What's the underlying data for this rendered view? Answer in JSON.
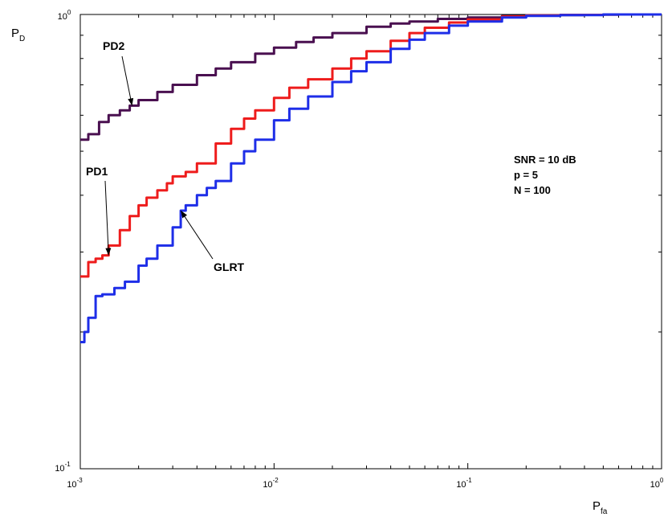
{
  "chart_data": {
    "type": "line",
    "xscale": "log",
    "yscale": "log",
    "xlim": [
      0.001,
      1
    ],
    "ylim": [
      0.1,
      1
    ],
    "xlabel": {
      "main": "P",
      "sub": "fa"
    },
    "ylabel": {
      "main": "P",
      "sub": "D"
    },
    "x_ticks": [
      {
        "base": "10",
        "exp": "-3"
      },
      {
        "base": "10",
        "exp": "-2"
      },
      {
        "base": "10",
        "exp": "-1"
      },
      {
        "base": "10",
        "exp": "0"
      }
    ],
    "y_ticks": [
      {
        "base": "10",
        "exp": "-1"
      },
      {
        "base": "10",
        "exp": "0"
      }
    ],
    "grid": false,
    "series": [
      {
        "name": "PD2",
        "color": "#4a1050",
        "x": [
          0.001,
          0.0011,
          0.00125,
          0.0014,
          0.0016,
          0.0018,
          0.002,
          0.0025,
          0.003,
          0.004,
          0.005,
          0.006,
          0.008,
          0.01,
          0.013,
          0.016,
          0.02,
          0.03,
          0.04,
          0.05,
          0.07,
          0.1,
          0.15,
          0.2,
          0.3,
          0.4,
          0.5,
          0.6,
          0.8,
          1.0
        ],
        "y": [
          0.53,
          0.545,
          0.58,
          0.6,
          0.615,
          0.63,
          0.648,
          0.675,
          0.7,
          0.735,
          0.76,
          0.785,
          0.82,
          0.845,
          0.87,
          0.89,
          0.91,
          0.94,
          0.955,
          0.965,
          0.978,
          0.985,
          0.992,
          0.995,
          0.997,
          0.998,
          0.999,
          1.0,
          1.0,
          1.0
        ]
      },
      {
        "name": "PD1",
        "color": "#ee1c1c",
        "x": [
          0.001,
          0.0011,
          0.0012,
          0.0013,
          0.0014,
          0.0016,
          0.0018,
          0.002,
          0.0022,
          0.0025,
          0.0028,
          0.003,
          0.0035,
          0.004,
          0.005,
          0.006,
          0.007,
          0.008,
          0.01,
          0.012,
          0.015,
          0.02,
          0.025,
          0.03,
          0.04,
          0.05,
          0.06,
          0.08,
          0.1,
          0.15,
          0.2,
          0.3,
          0.5,
          1.0
        ],
        "y": [
          0.265,
          0.285,
          0.29,
          0.295,
          0.31,
          0.335,
          0.36,
          0.38,
          0.395,
          0.41,
          0.425,
          0.44,
          0.45,
          0.47,
          0.52,
          0.56,
          0.59,
          0.615,
          0.655,
          0.69,
          0.72,
          0.76,
          0.8,
          0.83,
          0.875,
          0.91,
          0.935,
          0.96,
          0.975,
          0.99,
          0.995,
          0.998,
          1.0,
          1.0
        ]
      },
      {
        "name": "GLRT",
        "color": "#1e2ee8",
        "x": [
          0.001,
          0.00105,
          0.0011,
          0.0012,
          0.0013,
          0.0015,
          0.0017,
          0.002,
          0.0022,
          0.0025,
          0.003,
          0.0033,
          0.0035,
          0.004,
          0.0045,
          0.005,
          0.006,
          0.007,
          0.008,
          0.01,
          0.012,
          0.015,
          0.02,
          0.025,
          0.03,
          0.04,
          0.05,
          0.06,
          0.08,
          0.1,
          0.15,
          0.2,
          0.3,
          0.5,
          1.0
        ],
        "y": [
          0.19,
          0.2,
          0.215,
          0.24,
          0.242,
          0.25,
          0.258,
          0.28,
          0.29,
          0.31,
          0.34,
          0.37,
          0.38,
          0.4,
          0.415,
          0.43,
          0.47,
          0.5,
          0.53,
          0.585,
          0.62,
          0.66,
          0.71,
          0.75,
          0.785,
          0.84,
          0.88,
          0.91,
          0.945,
          0.965,
          0.985,
          0.993,
          0.997,
          1.0,
          1.0
        ]
      }
    ],
    "annotations": [
      {
        "text": "PD2",
        "target_series": "PD2",
        "target_x": 0.00185,
        "target_y": 0.63
      },
      {
        "text": "PD1",
        "target_series": "PD1",
        "target_x": 0.0014,
        "target_y": 0.295
      },
      {
        "text": "GLRT",
        "target_series": "GLRT",
        "target_x": 0.0033,
        "target_y": 0.37
      }
    ],
    "info_lines": [
      "SNR = 10 dB",
      "p = 5",
      "N = 100"
    ]
  }
}
